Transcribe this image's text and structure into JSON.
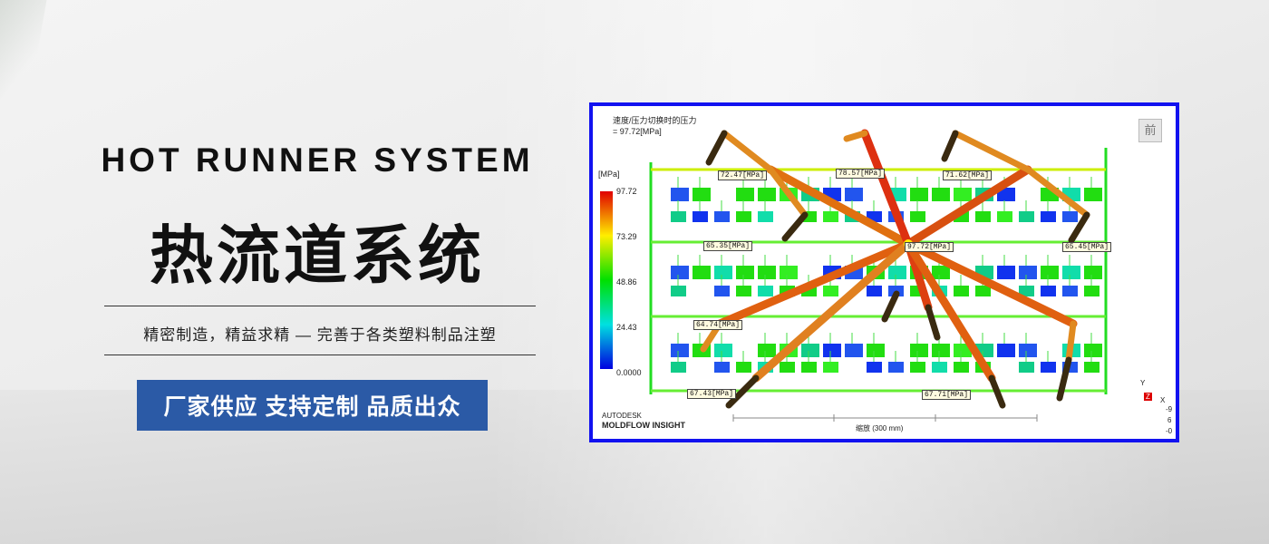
{
  "banner": {
    "title_en": "HOT RUNNER SYSTEM",
    "title_cn": "热流道系统",
    "subtitle": "精密制造，精益求精 — 完善于各类塑料制品注塑",
    "cta": "厂家供应 支持定制 品质出众",
    "cta_color": "#2b5aa6"
  },
  "simulation": {
    "title": "速度/压力切换时的压力",
    "value": "= 97.72[MPa]",
    "unit": "[MPa]",
    "legend": [
      "97.72",
      "73.29",
      "48.86",
      "24.43",
      "0.0000"
    ],
    "front_button": "前",
    "brand_line1": "AUTODESK",
    "brand_line2": "MOLDFLOW INSIGHT",
    "scale": "缩放 (300 mm)",
    "axis": {
      "y": "Y",
      "z": "Z",
      "x": "X",
      "n1": "-9",
      "n2": "6",
      "n3": "-0"
    },
    "tags": [
      "72.47[MPa]",
      "78.57[MPa]",
      "71.62[MPa]",
      "65.35[MPa]",
      "97.72[MPa]",
      "65.45[MPa]",
      "64.74[MPa]",
      "67.43[MPa]",
      "67.71[MPa]"
    ],
    "border_color": "#1212f0"
  }
}
